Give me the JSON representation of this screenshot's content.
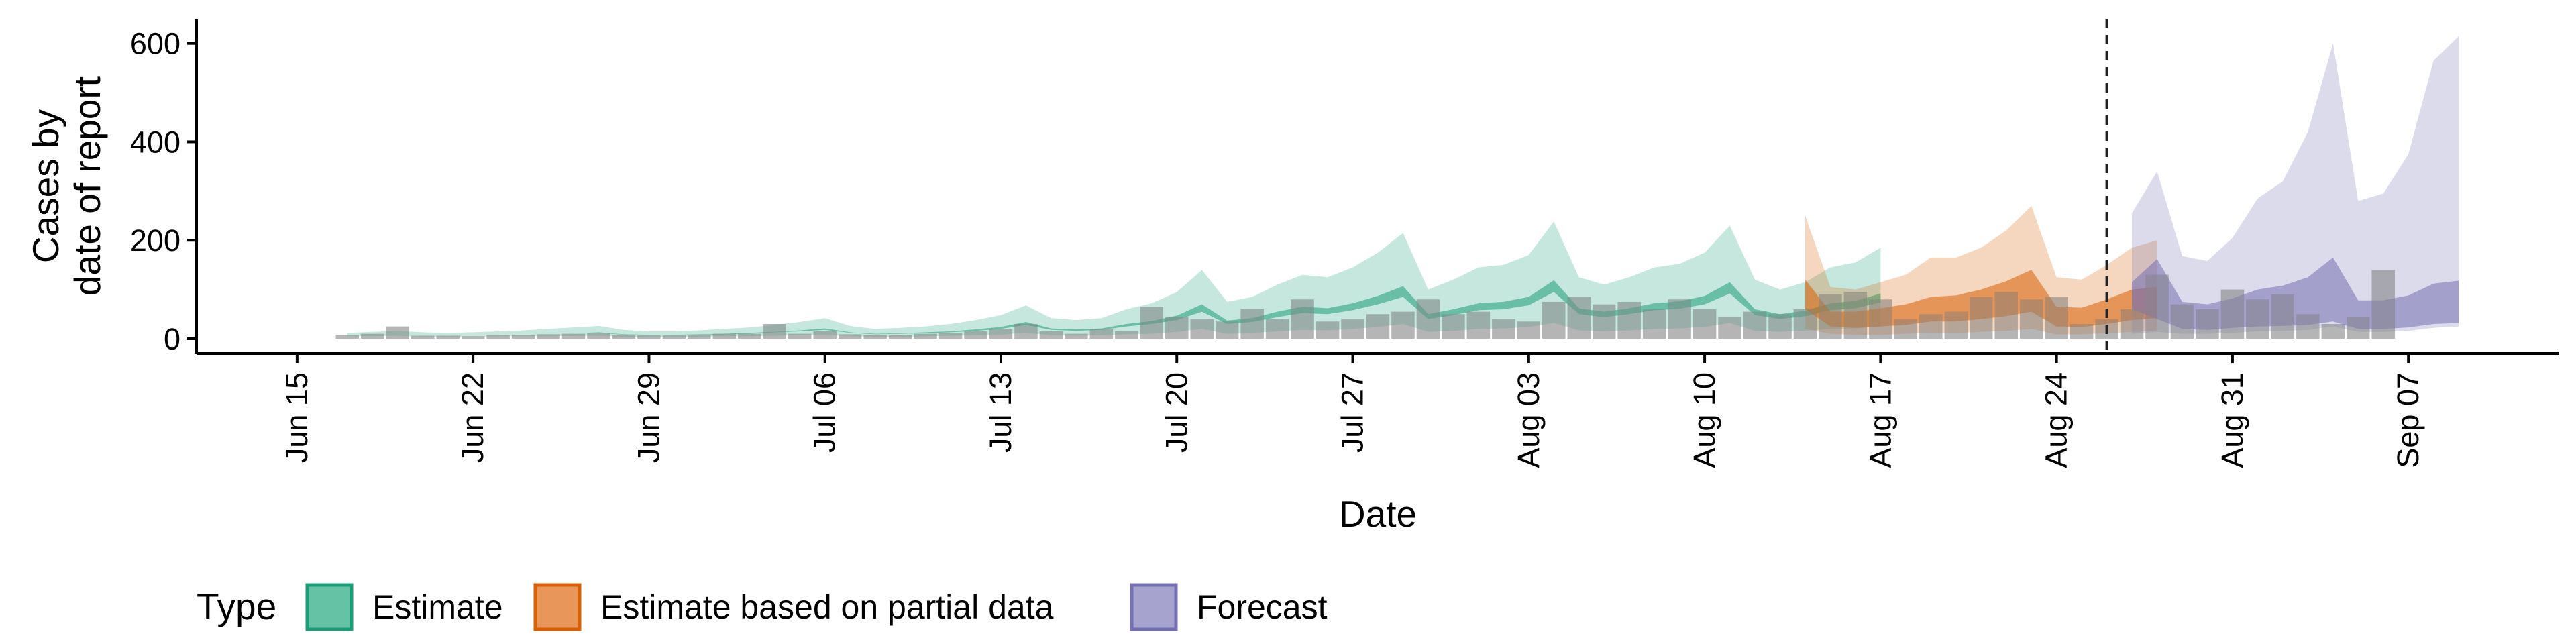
{
  "chart_data": {
    "type": "area",
    "xlabel": "Date",
    "ylabel": [
      "Cases by",
      "date of report"
    ],
    "x_axis": {
      "ticks": [
        {
          "date": "2020-06-15",
          "label": "Jun 15"
        },
        {
          "date": "2020-06-22",
          "label": "Jun 22"
        },
        {
          "date": "2020-06-29",
          "label": "Jun 29"
        },
        {
          "date": "2020-07-06",
          "label": "Jul 06"
        },
        {
          "date": "2020-07-13",
          "label": "Jul 13"
        },
        {
          "date": "2020-07-20",
          "label": "Jul 20"
        },
        {
          "date": "2020-07-27",
          "label": "Jul 27"
        },
        {
          "date": "2020-08-03",
          "label": "Aug 03"
        },
        {
          "date": "2020-08-10",
          "label": "Aug 10"
        },
        {
          "date": "2020-08-17",
          "label": "Aug 17"
        },
        {
          "date": "2020-08-24",
          "label": "Aug 24"
        },
        {
          "date": "2020-08-31",
          "label": "Aug 31"
        },
        {
          "date": "2020-09-07",
          "label": "Sep 07"
        }
      ],
      "range": [
        "2020-06-11",
        "2020-09-13"
      ]
    },
    "y_axis": {
      "range": [
        -30,
        650
      ],
      "ticks": [
        0,
        200,
        400,
        600
      ]
    },
    "grid": false,
    "vline_date": "2020-08-26",
    "legend": {
      "title": "Type",
      "position": "bottom-left",
      "items": [
        {
          "label": "Estimate",
          "fill": "#66c2a5",
          "stroke": "#1b9e77"
        },
        {
          "label": "Estimate based on partial data",
          "fill": "#e8965a",
          "stroke": "#d95f02"
        },
        {
          "label": "Forecast",
          "fill": "#a6a3cf",
          "stroke": "#7570b3"
        }
      ]
    },
    "colors": {
      "estimate": "#1b9e77",
      "partial": "#d95f02",
      "forecast": "#7570b3",
      "bars": "#8c8c8c"
    },
    "reported_cases": {
      "start": "2020-06-17",
      "values": [
        8,
        10,
        25,
        6,
        6,
        5,
        8,
        8,
        9,
        10,
        12,
        8,
        7,
        7,
        7,
        10,
        10,
        30,
        10,
        15,
        9,
        7,
        8,
        10,
        12,
        15,
        20,
        30,
        15,
        10,
        20,
        15,
        65,
        45,
        40,
        35,
        60,
        40,
        80,
        35,
        40,
        50,
        55,
        80,
        50,
        55,
        40,
        35,
        75,
        85,
        70,
        75,
        60,
        80,
        60,
        45,
        55,
        50,
        60,
        90,
        95,
        80,
        40,
        50,
        55,
        85,
        95,
        80,
        85,
        30,
        40,
        60,
        130,
        70,
        60,
        100,
        80,
        90,
        50,
        30,
        45,
        140
      ]
    },
    "series": [
      {
        "type_key": "estimate",
        "start": "2020-06-17",
        "upper90": [
          12,
          14,
          16,
          13,
          12,
          13,
          15,
          17,
          20,
          23,
          26,
          18,
          15,
          15,
          17,
          20,
          23,
          28,
          34,
          42,
          26,
          20,
          22,
          25,
          30,
          38,
          48,
          68,
          42,
          38,
          42,
          60,
          72,
          95,
          140,
          75,
          85,
          110,
          130,
          125,
          145,
          175,
          215,
          100,
          120,
          145,
          150,
          170,
          238,
          125,
          110,
          125,
          145,
          152,
          175,
          230,
          120,
          100,
          115,
          145,
          155,
          185
        ],
        "lower90": [
          5,
          5,
          6,
          4,
          4,
          4,
          5,
          5,
          5,
          6,
          6,
          4,
          4,
          4,
          4,
          5,
          5,
          6,
          7,
          8,
          5,
          4,
          4,
          5,
          6,
          7,
          8,
          12,
          7,
          6,
          7,
          9,
          10,
          14,
          20,
          10,
          12,
          15,
          18,
          17,
          20,
          24,
          30,
          14,
          16,
          20,
          21,
          24,
          32,
          17,
          15,
          17,
          20,
          21,
          24,
          32,
          16,
          14,
          16,
          20,
          21,
          25
        ],
        "upper50": [
          7,
          8,
          9,
          7,
          7,
          7,
          8,
          9,
          10,
          11,
          13,
          9,
          8,
          8,
          9,
          10,
          12,
          14,
          17,
          21,
          13,
          10,
          11,
          13,
          15,
          19,
          24,
          34,
          21,
          19,
          21,
          30,
          36,
          47,
          70,
          37,
          42,
          55,
          65,
          62,
          72,
          87,
          107,
          50,
          60,
          72,
          75,
          85,
          119,
          62,
          55,
          62,
          72,
          76,
          87,
          115,
          60,
          50,
          57,
          72,
          77,
          92
        ],
        "lower50": [
          7,
          8,
          9,
          7,
          7,
          7,
          8,
          9,
          10,
          11,
          12,
          8,
          7,
          7,
          8,
          9,
          10,
          13,
          15,
          18,
          12,
          9,
          10,
          11,
          13,
          16,
          20,
          28,
          18,
          16,
          18,
          25,
          30,
          38,
          55,
          30,
          34,
          44,
          52,
          50,
          58,
          70,
          85,
          40,
          48,
          58,
          60,
          68,
          95,
          50,
          44,
          50,
          58,
          61,
          70,
          92,
          48,
          40,
          46,
          58,
          62,
          74
        ]
      },
      {
        "type_key": "partial",
        "start": "2020-08-14",
        "upper90": [
          250,
          105,
          100,
          115,
          130,
          165,
          165,
          185,
          220,
          270,
          125,
          120,
          150,
          185,
          200
        ],
        "lower90": [
          20,
          10,
          8,
          8,
          10,
          12,
          12,
          14,
          16,
          20,
          9,
          9,
          11,
          14,
          16
        ],
        "upper50": [
          120,
          55,
          55,
          62,
          70,
          85,
          88,
          100,
          117,
          140,
          65,
          63,
          80,
          100,
          105
        ],
        "lower50": [
          60,
          25,
          22,
          25,
          28,
          35,
          35,
          40,
          46,
          55,
          25,
          24,
          30,
          38,
          42
        ]
      },
      {
        "type_key": "forecast",
        "start": "2020-08-27",
        "upper90": [
          255,
          340,
          168,
          158,
          205,
          285,
          320,
          420,
          600,
          280,
          295,
          375,
          565,
          615
        ],
        "lower90": [
          10,
          14,
          10,
          10,
          12,
          15,
          16,
          18,
          25,
          14,
          14,
          16,
          22,
          25
        ],
        "upper50": [
          115,
          162,
          75,
          70,
          82,
          100,
          108,
          125,
          165,
          78,
          78,
          88,
          112,
          118
        ],
        "lower50": [
          60,
          40,
          20,
          18,
          22,
          25,
          26,
          28,
          35,
          20,
          20,
          23,
          30,
          32
        ]
      }
    ]
  }
}
